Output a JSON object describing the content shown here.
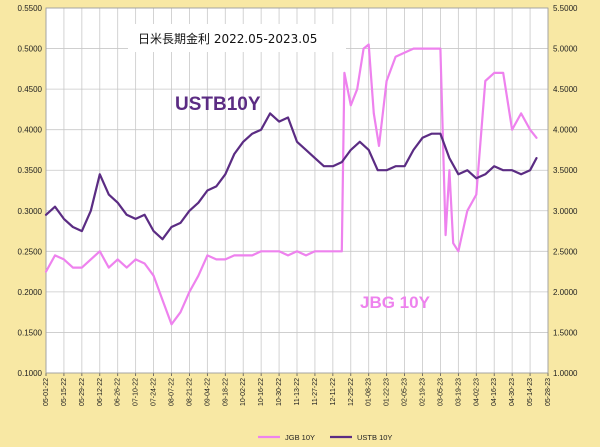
{
  "chart_data": {
    "type": "line",
    "title": "日米長期金利 2022.05-2023.05",
    "colors": {
      "background": "#f8e8a4",
      "plot_area": "#ffffff",
      "jgb": "#ee82ee",
      "ustb": "#5b2c83",
      "grid": "#c8c8c8"
    },
    "ylim_left": [
      0.1,
      0.55
    ],
    "ylim_right": [
      1.0,
      5.5
    ],
    "y_ticks_left": [
      "0.1000",
      "0.1500",
      "0.2000",
      "0.2500",
      "0.3000",
      "0.3500",
      "0.4000",
      "0.4500",
      "0.5000",
      "0.5500"
    ],
    "y_ticks_right": [
      "1.0000",
      "1.5000",
      "2.0000",
      "2.5000",
      "3.0000",
      "3.5000",
      "4.0000",
      "4.5000",
      "5.0000",
      "5.5000"
    ],
    "x_ticks": [
      "05-01-22",
      "05-15-22",
      "05-29-22",
      "06-12-22",
      "06-26-22",
      "07-10-22",
      "07-24-22",
      "08-07-22",
      "08-21-22",
      "09-04-22",
      "09-18-22",
      "10-02-22",
      "10-16-22",
      "10-30-22",
      "11-13-22",
      "11-27-22",
      "12-11-22",
      "12-25-22",
      "01-08-23",
      "01-22-23",
      "02-05-23",
      "02-19-23",
      "03-05-23",
      "03-19-23",
      "04-02-23",
      "04-16-23",
      "04-30-23",
      "05-14-23",
      "05-28-23"
    ],
    "grid": true,
    "legend_position": "bottom",
    "annotations": [
      {
        "text": "USTB10Y",
        "series": "USTB 10Y"
      },
      {
        "text": "JBG 10Y",
        "series": "JGB 10Y"
      }
    ],
    "series": [
      {
        "name": "JGB 10Y",
        "axis": "left",
        "color": "#ee82ee",
        "x": [
          "05-01-22",
          "05-08-22",
          "05-15-22",
          "05-22-22",
          "05-29-22",
          "06-05-22",
          "06-12-22",
          "06-19-22",
          "06-26-22",
          "07-03-22",
          "07-10-22",
          "07-17-22",
          "07-24-22",
          "07-31-22",
          "08-07-22",
          "08-14-22",
          "08-21-22",
          "08-28-22",
          "09-04-22",
          "09-11-22",
          "09-18-22",
          "09-25-22",
          "10-02-22",
          "10-09-22",
          "10-16-22",
          "10-23-22",
          "10-30-22",
          "11-06-22",
          "11-13-22",
          "11-20-22",
          "11-27-22",
          "12-04-22",
          "12-11-22",
          "12-18-22",
          "12-20-22",
          "12-25-22",
          "12-30-22",
          "01-04-23",
          "01-08-23",
          "01-12-23",
          "01-16-23",
          "01-22-23",
          "01-29-23",
          "02-05-23",
          "02-12-23",
          "02-19-23",
          "02-26-23",
          "03-05-23",
          "03-09-23",
          "03-12-23",
          "03-15-23",
          "03-19-23",
          "03-26-23",
          "04-02-23",
          "04-09-23",
          "04-16-23",
          "04-23-23",
          "04-30-23",
          "05-07-23",
          "05-14-23",
          "05-19-23"
        ],
        "y": [
          0.225,
          0.245,
          0.24,
          0.23,
          0.23,
          0.24,
          0.25,
          0.23,
          0.24,
          0.23,
          0.24,
          0.235,
          0.22,
          0.19,
          0.16,
          0.175,
          0.2,
          0.22,
          0.245,
          0.24,
          0.24,
          0.245,
          0.245,
          0.245,
          0.25,
          0.25,
          0.25,
          0.245,
          0.25,
          0.245,
          0.25,
          0.25,
          0.25,
          0.25,
          0.47,
          0.43,
          0.45,
          0.5,
          0.505,
          0.42,
          0.38,
          0.46,
          0.49,
          0.495,
          0.5,
          0.5,
          0.5,
          0.5,
          0.27,
          0.35,
          0.26,
          0.25,
          0.3,
          0.32,
          0.46,
          0.47,
          0.47,
          0.4,
          0.42,
          0.4,
          0.39
        ]
      },
      {
        "name": "USTB 10Y",
        "axis": "right",
        "color": "#5b2c83",
        "x": [
          "05-01-22",
          "05-08-22",
          "05-15-22",
          "05-22-22",
          "05-29-22",
          "06-05-22",
          "06-12-22",
          "06-19-22",
          "06-26-22",
          "07-03-22",
          "07-10-22",
          "07-17-22",
          "07-24-22",
          "07-31-22",
          "08-07-22",
          "08-14-22",
          "08-21-22",
          "08-28-22",
          "09-04-22",
          "09-11-22",
          "09-18-22",
          "09-25-22",
          "10-02-22",
          "10-09-22",
          "10-16-22",
          "10-23-22",
          "10-30-22",
          "11-06-22",
          "11-13-22",
          "11-20-22",
          "11-27-22",
          "12-04-22",
          "12-11-22",
          "12-18-22",
          "12-25-22",
          "01-01-23",
          "01-08-23",
          "01-15-23",
          "01-22-23",
          "01-29-23",
          "02-05-23",
          "02-12-23",
          "02-19-23",
          "02-26-23",
          "03-05-23",
          "03-12-23",
          "03-19-23",
          "03-26-23",
          "04-02-23",
          "04-09-23",
          "04-16-23",
          "04-23-23",
          "04-30-23",
          "05-07-23",
          "05-14-23",
          "05-19-23"
        ],
        "y": [
          2.95,
          3.05,
          2.9,
          2.8,
          2.75,
          3.0,
          3.45,
          3.2,
          3.1,
          2.95,
          2.9,
          2.95,
          2.75,
          2.65,
          2.8,
          2.85,
          3.0,
          3.1,
          3.25,
          3.3,
          3.45,
          3.7,
          3.85,
          3.95,
          4.0,
          4.2,
          4.1,
          4.15,
          3.85,
          3.75,
          3.65,
          3.55,
          3.55,
          3.6,
          3.75,
          3.85,
          3.75,
          3.5,
          3.5,
          3.55,
          3.55,
          3.75,
          3.9,
          3.95,
          3.95,
          3.65,
          3.45,
          3.5,
          3.4,
          3.45,
          3.55,
          3.5,
          3.5,
          3.45,
          3.5,
          3.65
        ]
      }
    ]
  }
}
